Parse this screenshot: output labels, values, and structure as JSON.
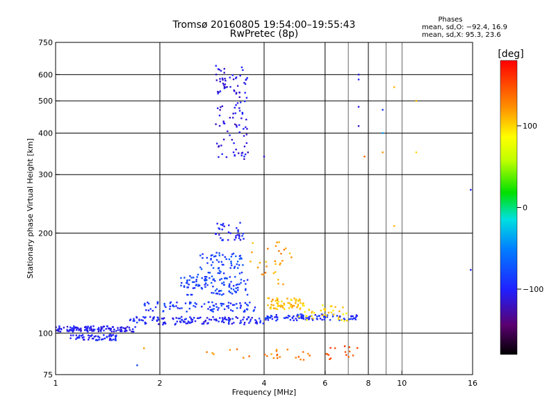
{
  "title_line1": "Tromsø 20160805 19:54:00–19:55:43",
  "title_line2": "RwPretec (8p)",
  "stats": {
    "heading": "Phases",
    "line1": "mean, sd,O: −92.4, 16.9",
    "line2": "mean, sd,X:  95.3, 23.6"
  },
  "chart_data": {
    "type": "scatter",
    "title": "Tromsø 20160805 19:54:00–19:55:43",
    "subtitle": "RwPretec (8p)",
    "xlabel": "Frequency [MHz]",
    "ylabel": "Stationary phase Virtual Height [km]",
    "x_scale": "log",
    "y_scale": "log",
    "xlim": [
      1,
      16
    ],
    "ylim": [
      75,
      750
    ],
    "x_ticks": [
      1,
      2,
      4,
      6,
      8,
      10,
      16
    ],
    "x_tick_labels": [
      "1",
      "2",
      "4",
      "6",
      "8",
      "10",
      "16"
    ],
    "x_grid_major": [
      2,
      4,
      6,
      8
    ],
    "x_grid_minor": [
      7,
      9,
      10
    ],
    "y_ticks": [
      75,
      100,
      200,
      300,
      400,
      500,
      600,
      750
    ],
    "y_tick_labels": [
      "75",
      "100",
      "200",
      "300",
      "400",
      "500",
      "600",
      "750"
    ],
    "y_grid": [
      100,
      200,
      300,
      400,
      500,
      600
    ],
    "grid": true,
    "colorbar": {
      "label": "[deg]",
      "range": [
        -180,
        180
      ],
      "ticks": [
        100,
        0,
        -100
      ],
      "tick_labels": [
        "100",
        "0",
        "−100"
      ]
    },
    "clusters": [
      {
        "x0": 1.0,
        "x1": 1.7,
        "y0": 101,
        "y1": 105,
        "phase": -105,
        "n": 120
      },
      {
        "x0": 1.1,
        "x1": 1.5,
        "y0": 95,
        "y1": 99,
        "phase": -100,
        "n": 60
      },
      {
        "x0": 1.6,
        "x1": 4.0,
        "y0": 106,
        "y1": 112,
        "phase": -100,
        "n": 140
      },
      {
        "x0": 4.0,
        "x1": 7.5,
        "y0": 109,
        "y1": 114,
        "phase": -95,
        "n": 100
      },
      {
        "x0": 1.8,
        "x1": 3.8,
        "y0": 116,
        "y1": 124,
        "phase": -90,
        "n": 90
      },
      {
        "x0": 2.3,
        "x1": 3.6,
        "y0": 130,
        "y1": 150,
        "phase": -85,
        "n": 110
      },
      {
        "x0": 2.6,
        "x1": 3.5,
        "y0": 150,
        "y1": 175,
        "phase": -80,
        "n": 60
      },
      {
        "x0": 2.9,
        "x1": 3.5,
        "y0": 190,
        "y1": 215,
        "phase": -100,
        "n": 35
      },
      {
        "x0": 4.1,
        "x1": 5.2,
        "y0": 118,
        "y1": 128,
        "phase": 110,
        "n": 60
      },
      {
        "x0": 5.0,
        "x1": 7.0,
        "y0": 108,
        "y1": 122,
        "phase": 100,
        "n": 40
      },
      {
        "x0": 3.6,
        "x1": 4.8,
        "y0": 140,
        "y1": 190,
        "phase": 120,
        "n": 30
      },
      {
        "x0": 2.9,
        "x1": 3.6,
        "y0": 330,
        "y1": 640,
        "phase": -110,
        "n": 110
      },
      {
        "x0": 2.7,
        "x1": 5.5,
        "y0": 83,
        "y1": 90,
        "phase": 130,
        "n": 25
      },
      {
        "x0": 6.0,
        "x1": 7.5,
        "y0": 83,
        "y1": 92,
        "phase": 150,
        "n": 15
      }
    ],
    "isolated_points": [
      {
        "x": 7.5,
        "y": 600,
        "phase": -110
      },
      {
        "x": 7.5,
        "y": 580,
        "phase": -100
      },
      {
        "x": 7.5,
        "y": 480,
        "phase": -110
      },
      {
        "x": 7.5,
        "y": 420,
        "phase": -120
      },
      {
        "x": 8.8,
        "y": 470,
        "phase": -90
      },
      {
        "x": 9.5,
        "y": 550,
        "phase": 110
      },
      {
        "x": 11.0,
        "y": 500,
        "phase": 110
      },
      {
        "x": 8.8,
        "y": 350,
        "phase": 120
      },
      {
        "x": 11.0,
        "y": 350,
        "phase": 100
      },
      {
        "x": 9.5,
        "y": 210,
        "phase": 110
      },
      {
        "x": 8.8,
        "y": 400,
        "phase": -40
      },
      {
        "x": 7.8,
        "y": 340,
        "phase": 140
      },
      {
        "x": 15.8,
        "y": 155,
        "phase": -100
      },
      {
        "x": 15.8,
        "y": 270,
        "phase": -100
      },
      {
        "x": 4.0,
        "y": 340,
        "phase": -110
      },
      {
        "x": 1.72,
        "y": 80,
        "phase": -80
      },
      {
        "x": 1.8,
        "y": 90,
        "phase": 120
      }
    ]
  }
}
